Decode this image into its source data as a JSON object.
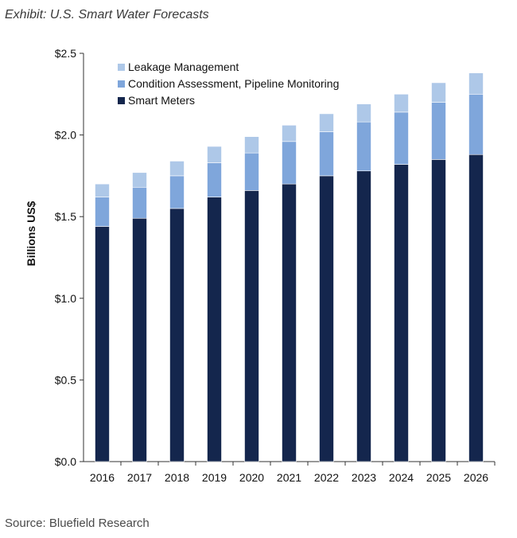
{
  "header": {
    "title": "Exhibit: U.S. Smart Water Forecasts"
  },
  "footer": {
    "source": "Source: Bluefield Research"
  },
  "chart_data": {
    "type": "bar",
    "stacked": true,
    "categories": [
      "2016",
      "2017",
      "2018",
      "2019",
      "2020",
      "2021",
      "2022",
      "2023",
      "2024",
      "2025",
      "2026"
    ],
    "series": [
      {
        "name": "Smart Meters",
        "color": "#14264d",
        "values": [
          1.44,
          1.49,
          1.55,
          1.62,
          1.66,
          1.7,
          1.75,
          1.78,
          1.82,
          1.85,
          1.88
        ]
      },
      {
        "name": "Condition Assessment, Pipeline Monitoring",
        "color": "#7fa6db",
        "values": [
          0.18,
          0.19,
          0.2,
          0.21,
          0.23,
          0.26,
          0.27,
          0.3,
          0.32,
          0.35,
          0.37
        ]
      },
      {
        "name": "Leakage Management",
        "color": "#aec8e8",
        "values": [
          0.08,
          0.09,
          0.09,
          0.1,
          0.1,
          0.1,
          0.11,
          0.11,
          0.11,
          0.12,
          0.13
        ]
      }
    ],
    "legend_order": [
      2,
      1,
      0
    ],
    "ylabel": "Billions US$",
    "xlabel": "",
    "ylim": [
      0,
      2.5
    ],
    "yticks": [
      0,
      0.5,
      1.0,
      1.5,
      2.0,
      2.5
    ],
    "ytick_labels": [
      "$0.0",
      "$0.5",
      "$1.0",
      "$1.5",
      "$2.0",
      "$2.5"
    ],
    "grid": false,
    "legend_position": "top-left"
  }
}
